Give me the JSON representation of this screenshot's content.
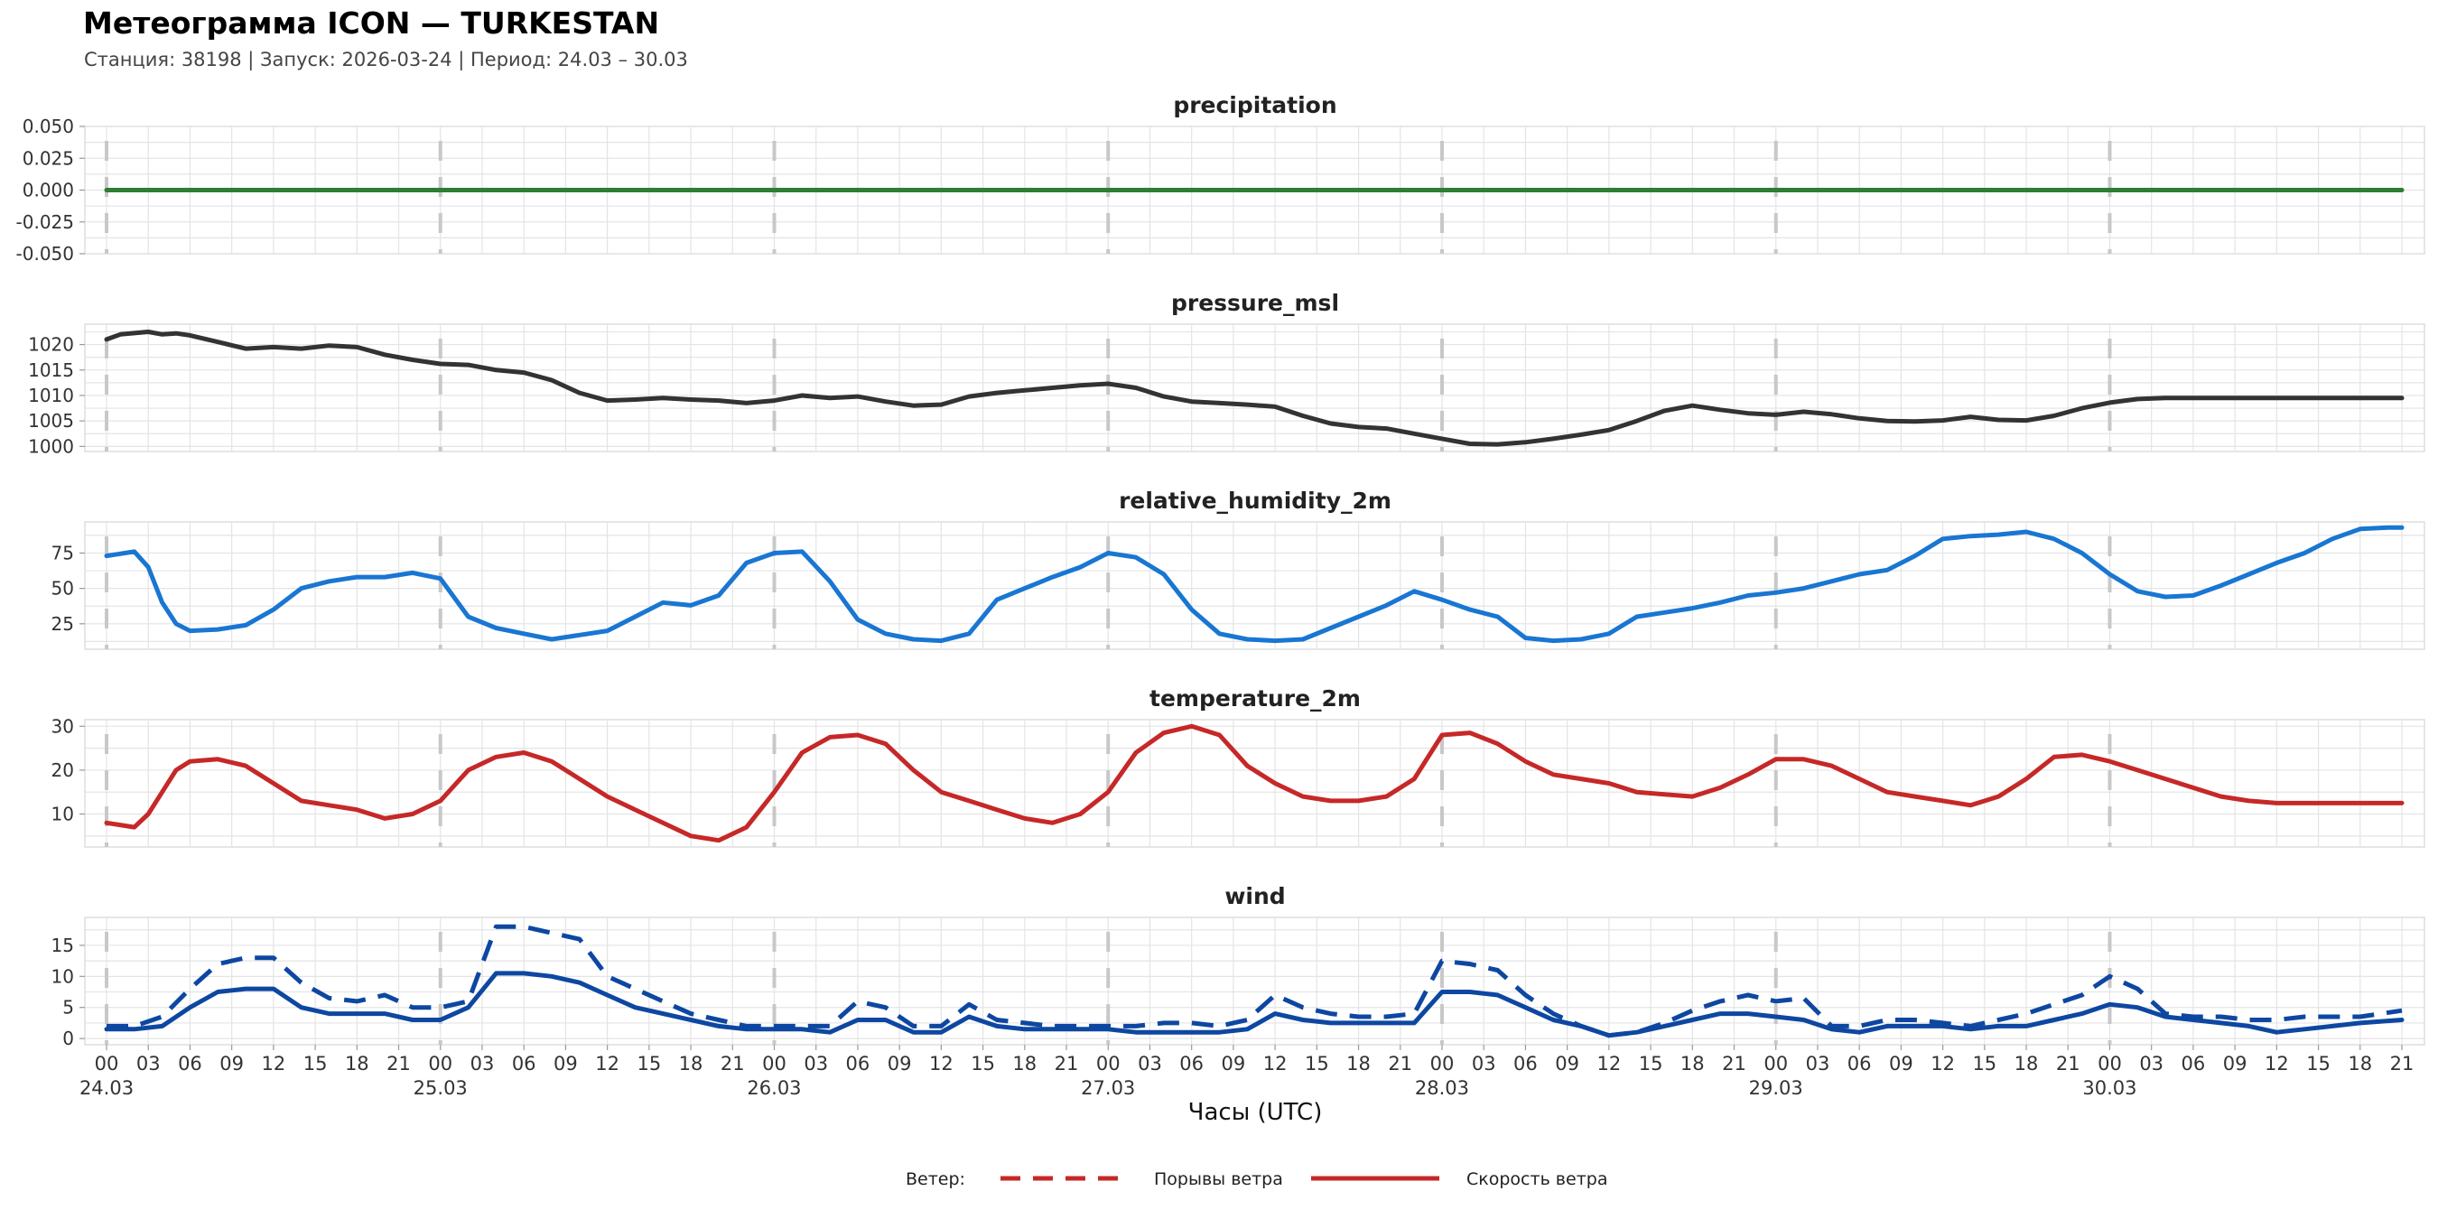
{
  "header": {
    "title": "Метеограмма ICON — TURKESTAN",
    "subtitle": "Станция: 38198  | Запуск: 2026-03-24  | Период: 24.03 – 30.03"
  },
  "chart_data": {
    "type": "line",
    "xlabel": "Часы (UTC)",
    "x_hours_start": 0,
    "x_hours_end": 165,
    "x_tick_labels": [
      "00",
      "03",
      "06",
      "09",
      "12",
      "15",
      "18",
      "21",
      "00",
      "03",
      "06",
      "09",
      "12",
      "15",
      "18",
      "21",
      "00",
      "03",
      "06",
      "09",
      "12",
      "15",
      "18",
      "21",
      "00",
      "03",
      "06",
      "09",
      "12",
      "15",
      "18",
      "21",
      "00",
      "03",
      "06",
      "09",
      "12",
      "15",
      "18",
      "21",
      "00",
      "03",
      "06",
      "09",
      "12",
      "15",
      "18",
      "21",
      "00",
      "03",
      "06",
      "09",
      "12",
      "15",
      "18",
      "21"
    ],
    "day_labels": [
      "24.03",
      "25.03",
      "26.03",
      "27.03",
      "28.03",
      "29.03",
      "30.03"
    ],
    "legend": {
      "title": "Ветер:",
      "gust_label": "Порывы ветра",
      "speed_label": "Скорость ветра",
      "color": "#c62828",
      "placement": "bottom-center"
    },
    "panels": [
      {
        "name": "precipitation",
        "title": "precipitation",
        "ylim": [
          -0.05,
          0.05
        ],
        "yticks": [
          "0.050",
          "0.025",
          "0.000",
          "-0.025",
          "-0.050"
        ],
        "ytick_values": [
          0.05,
          0.025,
          0,
          -0.025,
          -0.05
        ],
        "series": [
          {
            "name": "precipitation",
            "color": "#2e7d32",
            "dashed": false,
            "hours": [
              0,
              165
            ],
            "values": [
              0,
              0
            ]
          }
        ]
      },
      {
        "name": "pressure",
        "title": "pressure_msl",
        "ylim": [
          999,
          1024
        ],
        "yticks": [
          "1020",
          "1015",
          "1010",
          "1005",
          "1000"
        ],
        "ytick_values": [
          1020,
          1015,
          1010,
          1005,
          1000
        ],
        "series": [
          {
            "name": "pressure_msl",
            "color": "#333333",
            "dashed": false,
            "hours": [
              0,
              1,
              3,
              4,
              5,
              6,
              8,
              10,
              12,
              14,
              16,
              18,
              20,
              22,
              24,
              26,
              28,
              30,
              32,
              34,
              36,
              38,
              40,
              42,
              44,
              46,
              48,
              50,
              52,
              54,
              56,
              58,
              60,
              62,
              64,
              66,
              68,
              70,
              72,
              74,
              76,
              78,
              80,
              82,
              84,
              86,
              88,
              90,
              92,
              94,
              96,
              98,
              100,
              102,
              104,
              106,
              108,
              110,
              112,
              114,
              116,
              118,
              120,
              122,
              124,
              126,
              128,
              130,
              132,
              134,
              136,
              138,
              140,
              142,
              144,
              146,
              148,
              150,
              152,
              154,
              156,
              158,
              160,
              162,
              165
            ],
            "values": [
              1021,
              1022,
              1022.5,
              1022,
              1022.2,
              1021.8,
              1020.5,
              1019.2,
              1019.5,
              1019.2,
              1019.8,
              1019.5,
              1018,
              1017,
              1016.2,
              1016,
              1015,
              1014.5,
              1013,
              1010.5,
              1009,
              1009.2,
              1009.5,
              1009.2,
              1009,
              1008.5,
              1009,
              1010,
              1009.5,
              1009.8,
              1008.8,
              1008,
              1008.2,
              1009.8,
              1010.5,
              1011,
              1011.5,
              1012,
              1012.3,
              1011.5,
              1009.8,
              1008.8,
              1008.5,
              1008.2,
              1007.8,
              1006,
              1004.5,
              1003.8,
              1003.5,
              1002.5,
              1001.5,
              1000.5,
              1000.4,
              1000.8,
              1001.5,
              1002.3,
              1003.2,
              1005,
              1007,
              1008,
              1007.2,
              1006.5,
              1006.2,
              1006.8,
              1006.3,
              1005.5,
              1005,
              1004.9,
              1005.1,
              1005.8,
              1005.2,
              1005.1,
              1006,
              1007.5,
              1008.6,
              1009.3,
              1009.5,
              1009.5,
              1009.5,
              1009.5,
              1009.5,
              1009.5,
              1009.5,
              1009.5,
              1009.5
            ]
          }
        ]
      },
      {
        "name": "humidity",
        "title": "relative_humidity_2m",
        "ylim": [
          7,
          97
        ],
        "yticks": [
          "75",
          "50",
          "25"
        ],
        "ytick_values": [
          75,
          50,
          25
        ],
        "series": [
          {
            "name": "relative_humidity_2m",
            "color": "#1976d2",
            "dashed": false,
            "hours": [
              0,
              2,
              3,
              4,
              5,
              6,
              8,
              10,
              12,
              14,
              16,
              18,
              20,
              22,
              24,
              26,
              28,
              30,
              32,
              34,
              36,
              38,
              40,
              42,
              44,
              46,
              48,
              50,
              52,
              54,
              56,
              58,
              60,
              62,
              64,
              66,
              68,
              70,
              72,
              74,
              76,
              78,
              80,
              82,
              84,
              86,
              88,
              90,
              92,
              94,
              96,
              98,
              100,
              102,
              104,
              106,
              108,
              110,
              112,
              114,
              116,
              118,
              120,
              122,
              124,
              126,
              128,
              130,
              132,
              134,
              136,
              138,
              140,
              142,
              144,
              146,
              148,
              150,
              152,
              154,
              156,
              158,
              160,
              162,
              164,
              165
            ],
            "values": [
              73,
              76,
              65,
              40,
              25,
              20,
              21,
              24,
              35,
              50,
              55,
              58,
              58,
              61,
              57,
              30,
              22,
              18,
              14,
              17,
              20,
              30,
              40,
              38,
              45,
              68,
              75,
              76,
              55,
              28,
              18,
              14,
              13,
              18,
              42,
              50,
              58,
              65,
              75,
              72,
              60,
              35,
              18,
              14,
              13,
              14,
              22,
              30,
              38,
              48,
              42,
              35,
              30,
              15,
              13,
              14,
              18,
              30,
              33,
              36,
              40,
              45,
              47,
              50,
              55,
              60,
              63,
              73,
              85,
              87,
              88,
              90,
              85,
              75,
              60,
              48,
              44,
              45,
              52,
              60,
              68,
              75,
              85,
              92,
              93,
              93
            ]
          }
        ]
      },
      {
        "name": "temperature",
        "title": "temperature_2m",
        "ylim": [
          2.5,
          31.5
        ],
        "yticks": [
          "30",
          "20",
          "10"
        ],
        "ytick_values": [
          30,
          20,
          10
        ],
        "series": [
          {
            "name": "temperature_2m",
            "color": "#c62828",
            "dashed": false,
            "hours": [
              0,
              2,
              3,
              4,
              5,
              6,
              8,
              10,
              12,
              14,
              16,
              18,
              20,
              22,
              24,
              26,
              28,
              30,
              32,
              34,
              36,
              38,
              40,
              42,
              44,
              46,
              48,
              50,
              52,
              54,
              56,
              58,
              60,
              62,
              64,
              66,
              68,
              70,
              72,
              74,
              76,
              78,
              80,
              82,
              84,
              86,
              88,
              90,
              92,
              94,
              96,
              98,
              100,
              102,
              104,
              106,
              108,
              110,
              112,
              114,
              116,
              118,
              120,
              122,
              124,
              126,
              128,
              130,
              132,
              134,
              136,
              138,
              140,
              142,
              144,
              146,
              148,
              150,
              152,
              154,
              156,
              158,
              160,
              162,
              164,
              165
            ],
            "values": [
              8,
              7,
              10,
              15,
              20,
              22,
              22.5,
              21,
              17,
              13,
              12,
              11,
              9,
              10,
              13,
              20,
              23,
              24,
              22,
              18,
              14,
              11,
              8,
              5,
              4,
              7,
              15,
              24,
              27.5,
              28,
              26,
              20,
              15,
              13,
              11,
              9,
              8,
              10,
              15,
              24,
              28.5,
              30,
              28,
              21,
              17,
              14,
              13,
              13,
              14,
              18,
              28,
              28.5,
              26,
              22,
              19,
              18,
              17,
              15,
              14.5,
              14,
              16,
              19,
              22.5,
              22.5,
              21,
              18,
              15,
              14,
              13,
              12,
              14,
              18,
              23,
              23.5,
              22,
              20,
              18,
              16,
              14,
              13,
              12.5,
              12.5,
              12.5,
              12.5,
              12.5,
              12.5
            ]
          }
        ]
      },
      {
        "name": "wind",
        "title": "wind",
        "ylim": [
          -1,
          19.5
        ],
        "yticks": [
          "15",
          "10",
          "5",
          "0"
        ],
        "ytick_values": [
          15,
          10,
          5,
          0
        ],
        "series": [
          {
            "name": "Порывы ветра",
            "color": "#0d47a1",
            "dashed": true,
            "hours": [
              0,
              2,
              4,
              6,
              8,
              10,
              12,
              14,
              16,
              18,
              20,
              22,
              24,
              26,
              28,
              30,
              32,
              34,
              36,
              38,
              40,
              42,
              44,
              46,
              48,
              50,
              52,
              54,
              56,
              58,
              60,
              62,
              64,
              66,
              68,
              70,
              72,
              74,
              76,
              78,
              80,
              82,
              84,
              86,
              88,
              90,
              92,
              94,
              96,
              98,
              100,
              102,
              104,
              106,
              108,
              110,
              112,
              114,
              116,
              118,
              120,
              122,
              124,
              126,
              128,
              130,
              132,
              134,
              136,
              138,
              140,
              142,
              144,
              146,
              148,
              150,
              152,
              154,
              156,
              158,
              160,
              162,
              165
            ],
            "values": [
              2,
              2,
              3.5,
              8,
              12,
              13,
              13,
              9,
              6.5,
              6,
              7,
              5,
              5,
              6,
              18,
              18,
              17,
              16,
              10,
              8,
              6,
              4,
              3,
              2,
              2,
              2,
              2,
              6,
              5,
              2,
              2,
              5.5,
              3,
              2.5,
              2,
              2,
              2,
              2,
              2.5,
              2.5,
              2,
              3,
              7,
              5,
              4,
              3.5,
              3.5,
              4,
              12.5,
              12,
              11,
              7,
              4,
              2,
              0.5,
              1,
              2.5,
              4.5,
              6,
              7,
              6,
              6.5,
              2,
              2,
              3,
              3,
              2.5,
              2,
              3,
              4,
              5.5,
              7,
              10,
              8,
              4,
              3.5,
              3.5,
              3,
              3,
              3.5,
              3.5,
              3.5,
              4.5
            ]
          },
          {
            "name": "Скорость ветра",
            "color": "#0d47a1",
            "dashed": false,
            "hours": [
              0,
              2,
              4,
              6,
              8,
              10,
              12,
              14,
              16,
              18,
              20,
              22,
              24,
              26,
              28,
              30,
              32,
              34,
              36,
              38,
              40,
              42,
              44,
              46,
              48,
              50,
              52,
              54,
              56,
              58,
              60,
              62,
              64,
              66,
              68,
              70,
              72,
              74,
              76,
              78,
              80,
              82,
              84,
              86,
              88,
              90,
              92,
              94,
              96,
              98,
              100,
              102,
              104,
              106,
              108,
              110,
              112,
              114,
              116,
              118,
              120,
              122,
              124,
              126,
              128,
              130,
              132,
              134,
              136,
              138,
              140,
              142,
              144,
              146,
              148,
              150,
              152,
              154,
              156,
              158,
              160,
              162,
              165
            ],
            "values": [
              1.5,
              1.5,
              2,
              5,
              7.5,
              8,
              8,
              5,
              4,
              4,
              4,
              3,
              3,
              5,
              10.5,
              10.5,
              10,
              9,
              7,
              5,
              4,
              3,
              2,
              1.5,
              1.5,
              1.5,
              1,
              3,
              3,
              1,
              1,
              3.5,
              2,
              1.5,
              1.5,
              1.5,
              1.5,
              1,
              1,
              1,
              1,
              1.5,
              4,
              3,
              2.5,
              2.5,
              2.5,
              2.5,
              7.5,
              7.5,
              7,
              5,
              3,
              2,
              0.5,
              1,
              2,
              3,
              4,
              4,
              3.5,
              3,
              1.5,
              1,
              2,
              2,
              2,
              1.5,
              2,
              2,
              3,
              4,
              5.5,
              5,
              3.5,
              3,
              2.5,
              2,
              1,
              1.5,
              2,
              2.5,
              3
            ]
          }
        ]
      }
    ]
  }
}
